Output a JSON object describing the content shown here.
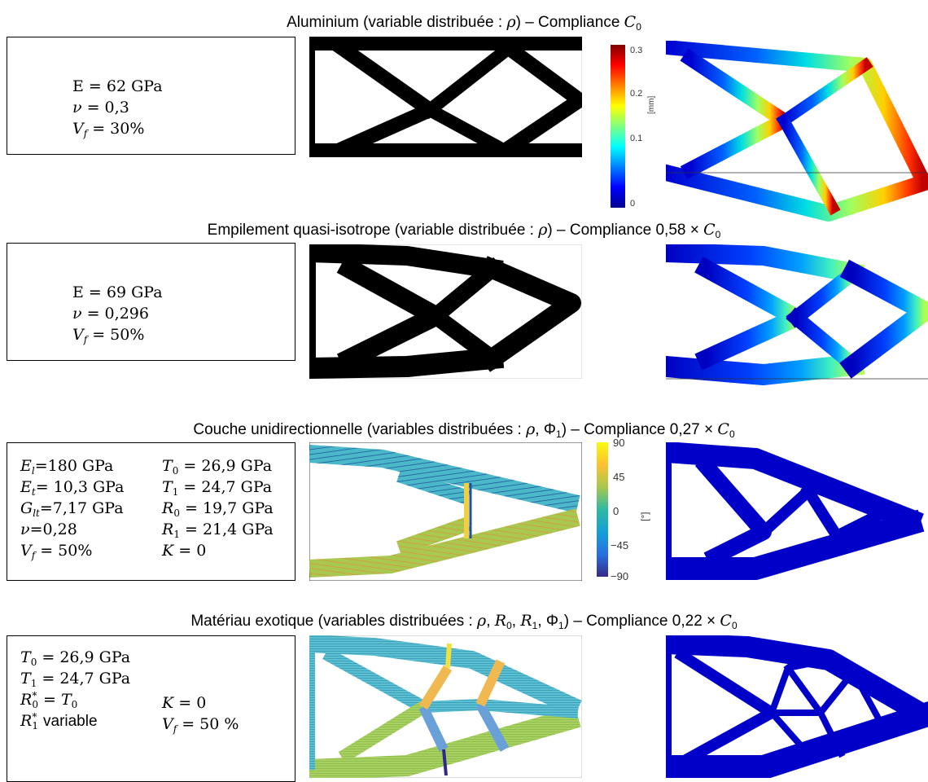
{
  "colors": {
    "black": "#000000",
    "jet_low": "#00008f",
    "jet_high": "#800000",
    "parula_low": "#352a87",
    "parula_high": "#f9fb0e"
  },
  "sections": [
    {
      "title_text": "Aluminium (variable distribuée : ",
      "title_var": "ρ",
      "title_mid": ") – Compliance ",
      "title_factor": "",
      "title_comp": "C",
      "title_comp_sub": "0",
      "props": [
        "E = 62 GPa",
        "ν = 0,3",
        "V_f = 30%"
      ]
    },
    {
      "title_text": "Empilement quasi-isotrope (variable distribuée : ",
      "title_var": "ρ",
      "title_mid": ") – Compliance ",
      "title_factor": "0,58 × ",
      "title_comp": "C",
      "title_comp_sub": "0",
      "props": [
        "E = 69 GPa",
        "ν = 0,296",
        "V_f = 50%"
      ]
    },
    {
      "title_text": "Couche unidirectionnelle (variables distribuées : ",
      "title_var": "ρ, Φ₁",
      "title_mid": ") – Compliance ",
      "title_factor": "0,27 × ",
      "title_comp": "C",
      "title_comp_sub": "0",
      "props_left": [
        "E_l=180 GPa",
        "E_t= 10,3 GPa",
        "G_lt=7,17 GPa",
        "ν=0,28",
        "V_f = 50%"
      ],
      "props_right": [
        "T_0 = 26,9 GPa",
        "T_1 = 24,7 GPa",
        "R_0 = 19,7 GPa",
        "R_1 = 21,4 GPa",
        "K = 0"
      ]
    },
    {
      "title_text": "Matériau exotique (variables distribuées : ",
      "title_var": "ρ, R₀, R₁, Φ₁",
      "title_mid": ") – Compliance ",
      "title_factor": "0,22 × ",
      "title_comp": "C",
      "title_comp_sub": "0",
      "props_left": [
        "T_0 = 26,9 GPa",
        "T_1 = 24,7 GPa",
        "R*_0 = T_0",
        "R*_1 variable"
      ],
      "props_right": [
        "K = 0",
        "V_f = 50 %"
      ]
    }
  ],
  "colorbar_disp": {
    "unit": "[mm]",
    "ticks": [
      "0.3",
      "0.2",
      "0.1",
      "0"
    ]
  },
  "colorbar_angle": {
    "unit": "[°]",
    "ticks": [
      "90",
      "45",
      "0",
      "−45",
      "−90"
    ]
  }
}
